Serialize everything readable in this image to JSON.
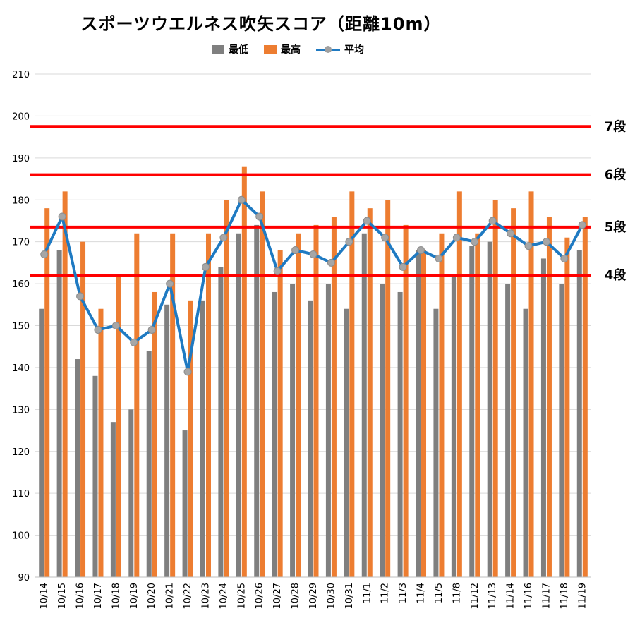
{
  "title": "スポーツウエルネス吹矢スコア（距離10m）",
  "legend": {
    "min": "最低",
    "max": "最高",
    "avg": "平均"
  },
  "colors": {
    "min": "#7f7f7f",
    "max": "#ed7d31",
    "avg_line": "#1f7ac2",
    "avg_marker": "#a6a6a6",
    "threshold": "#ff0000",
    "grid": "#d9d9d9"
  },
  "chart_data": {
    "type": "bar",
    "title": "スポーツウエルネス吹矢スコア（距離10m）",
    "xlabel": "",
    "ylabel": "",
    "ylim": [
      90,
      210
    ],
    "yticks": [
      90,
      100,
      110,
      120,
      130,
      140,
      150,
      160,
      170,
      180,
      190,
      200,
      210
    ],
    "grid": true,
    "legend_position": "top",
    "categories": [
      "10/14",
      "10/15",
      "10/16",
      "10/17",
      "10/18",
      "10/19",
      "10/20",
      "10/21",
      "10/22",
      "10/23",
      "10/24",
      "10/25",
      "10/26",
      "10/27",
      "10/28",
      "10/29",
      "10/30",
      "10/31",
      "11/1",
      "11/2",
      "11/3",
      "11/4",
      "11/5",
      "11/8",
      "11/12",
      "11/13",
      "11/14",
      "11/16",
      "11/17",
      "11/18",
      "11/19"
    ],
    "series": [
      {
        "name": "最低",
        "type": "bar",
        "values": [
          154,
          168,
          142,
          138,
          127,
          130,
          144,
          155,
          125,
          156,
          164,
          172,
          174,
          158,
          160,
          156,
          160,
          154,
          172,
          160,
          158,
          168,
          154,
          162,
          169,
          170,
          160,
          154,
          166,
          160,
          168
        ]
      },
      {
        "name": "最高",
        "type": "bar",
        "values": [
          178,
          182,
          170,
          154,
          162,
          172,
          158,
          172,
          156,
          172,
          180,
          188,
          182,
          168,
          172,
          174,
          176,
          182,
          178,
          180,
          174,
          168,
          172,
          182,
          172,
          180,
          178,
          182,
          176,
          171,
          176
        ]
      },
      {
        "name": "平均",
        "type": "line",
        "values": [
          167,
          176,
          157,
          149,
          150,
          146,
          149,
          160,
          139,
          164,
          171,
          180,
          176,
          163,
          168,
          167,
          165,
          170,
          175,
          171,
          164,
          168,
          166,
          171,
          170,
          175,
          172,
          169,
          170,
          166,
          174
        ]
      }
    ],
    "reference_lines": [
      {
        "label": "7段",
        "value": 197.5
      },
      {
        "label": "6段",
        "value": 186
      },
      {
        "label": "5段",
        "value": 173.5
      },
      {
        "label": "4段",
        "value": 162
      }
    ]
  }
}
